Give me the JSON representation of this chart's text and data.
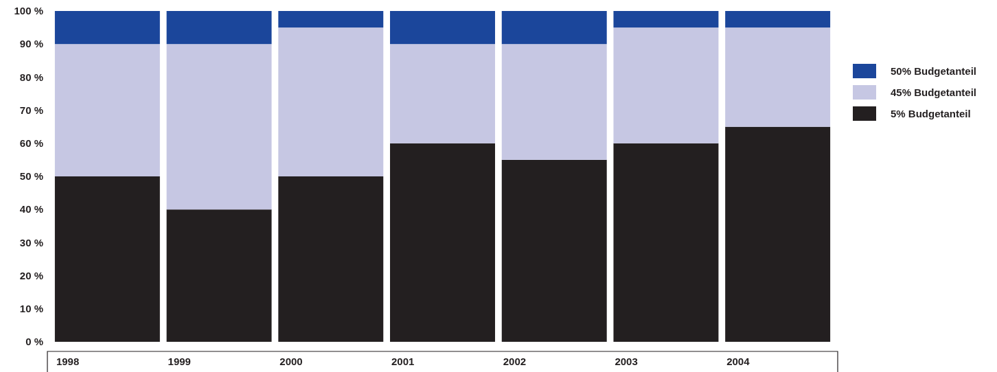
{
  "chart_data": {
    "type": "bar",
    "stacked": true,
    "categories": [
      "1998",
      "1999",
      "2000",
      "2001",
      "2002",
      "2003",
      "2004"
    ],
    "series": [
      {
        "name": "5% Budgetanteil",
        "color": "#231f20",
        "values": [
          50,
          40,
          50,
          60,
          55,
          60,
          65
        ]
      },
      {
        "name": "45% Budgetanteil",
        "color": "#c6c7e3",
        "values": [
          40,
          50,
          45,
          30,
          35,
          35,
          30
        ]
      },
      {
        "name": "50% Budgetanteil",
        "color": "#1b469b",
        "values": [
          10,
          10,
          5,
          10,
          10,
          5,
          5
        ]
      }
    ],
    "ylim": [
      0,
      100
    ],
    "yticks": [
      {
        "value": 0,
        "label": "0 %"
      },
      {
        "value": 10,
        "label": "10 %"
      },
      {
        "value": 20,
        "label": "20 %"
      },
      {
        "value": 30,
        "label": "30 %"
      },
      {
        "value": 40,
        "label": "40 %"
      },
      {
        "value": 50,
        "label": "50 %"
      },
      {
        "value": 60,
        "label": "60 %"
      },
      {
        "value": 70,
        "label": "70 %"
      },
      {
        "value": 80,
        "label": "80 %"
      },
      {
        "value": 90,
        "label": "90 %"
      },
      {
        "value": 100,
        "label": "100 %"
      }
    ],
    "legend": "right"
  }
}
